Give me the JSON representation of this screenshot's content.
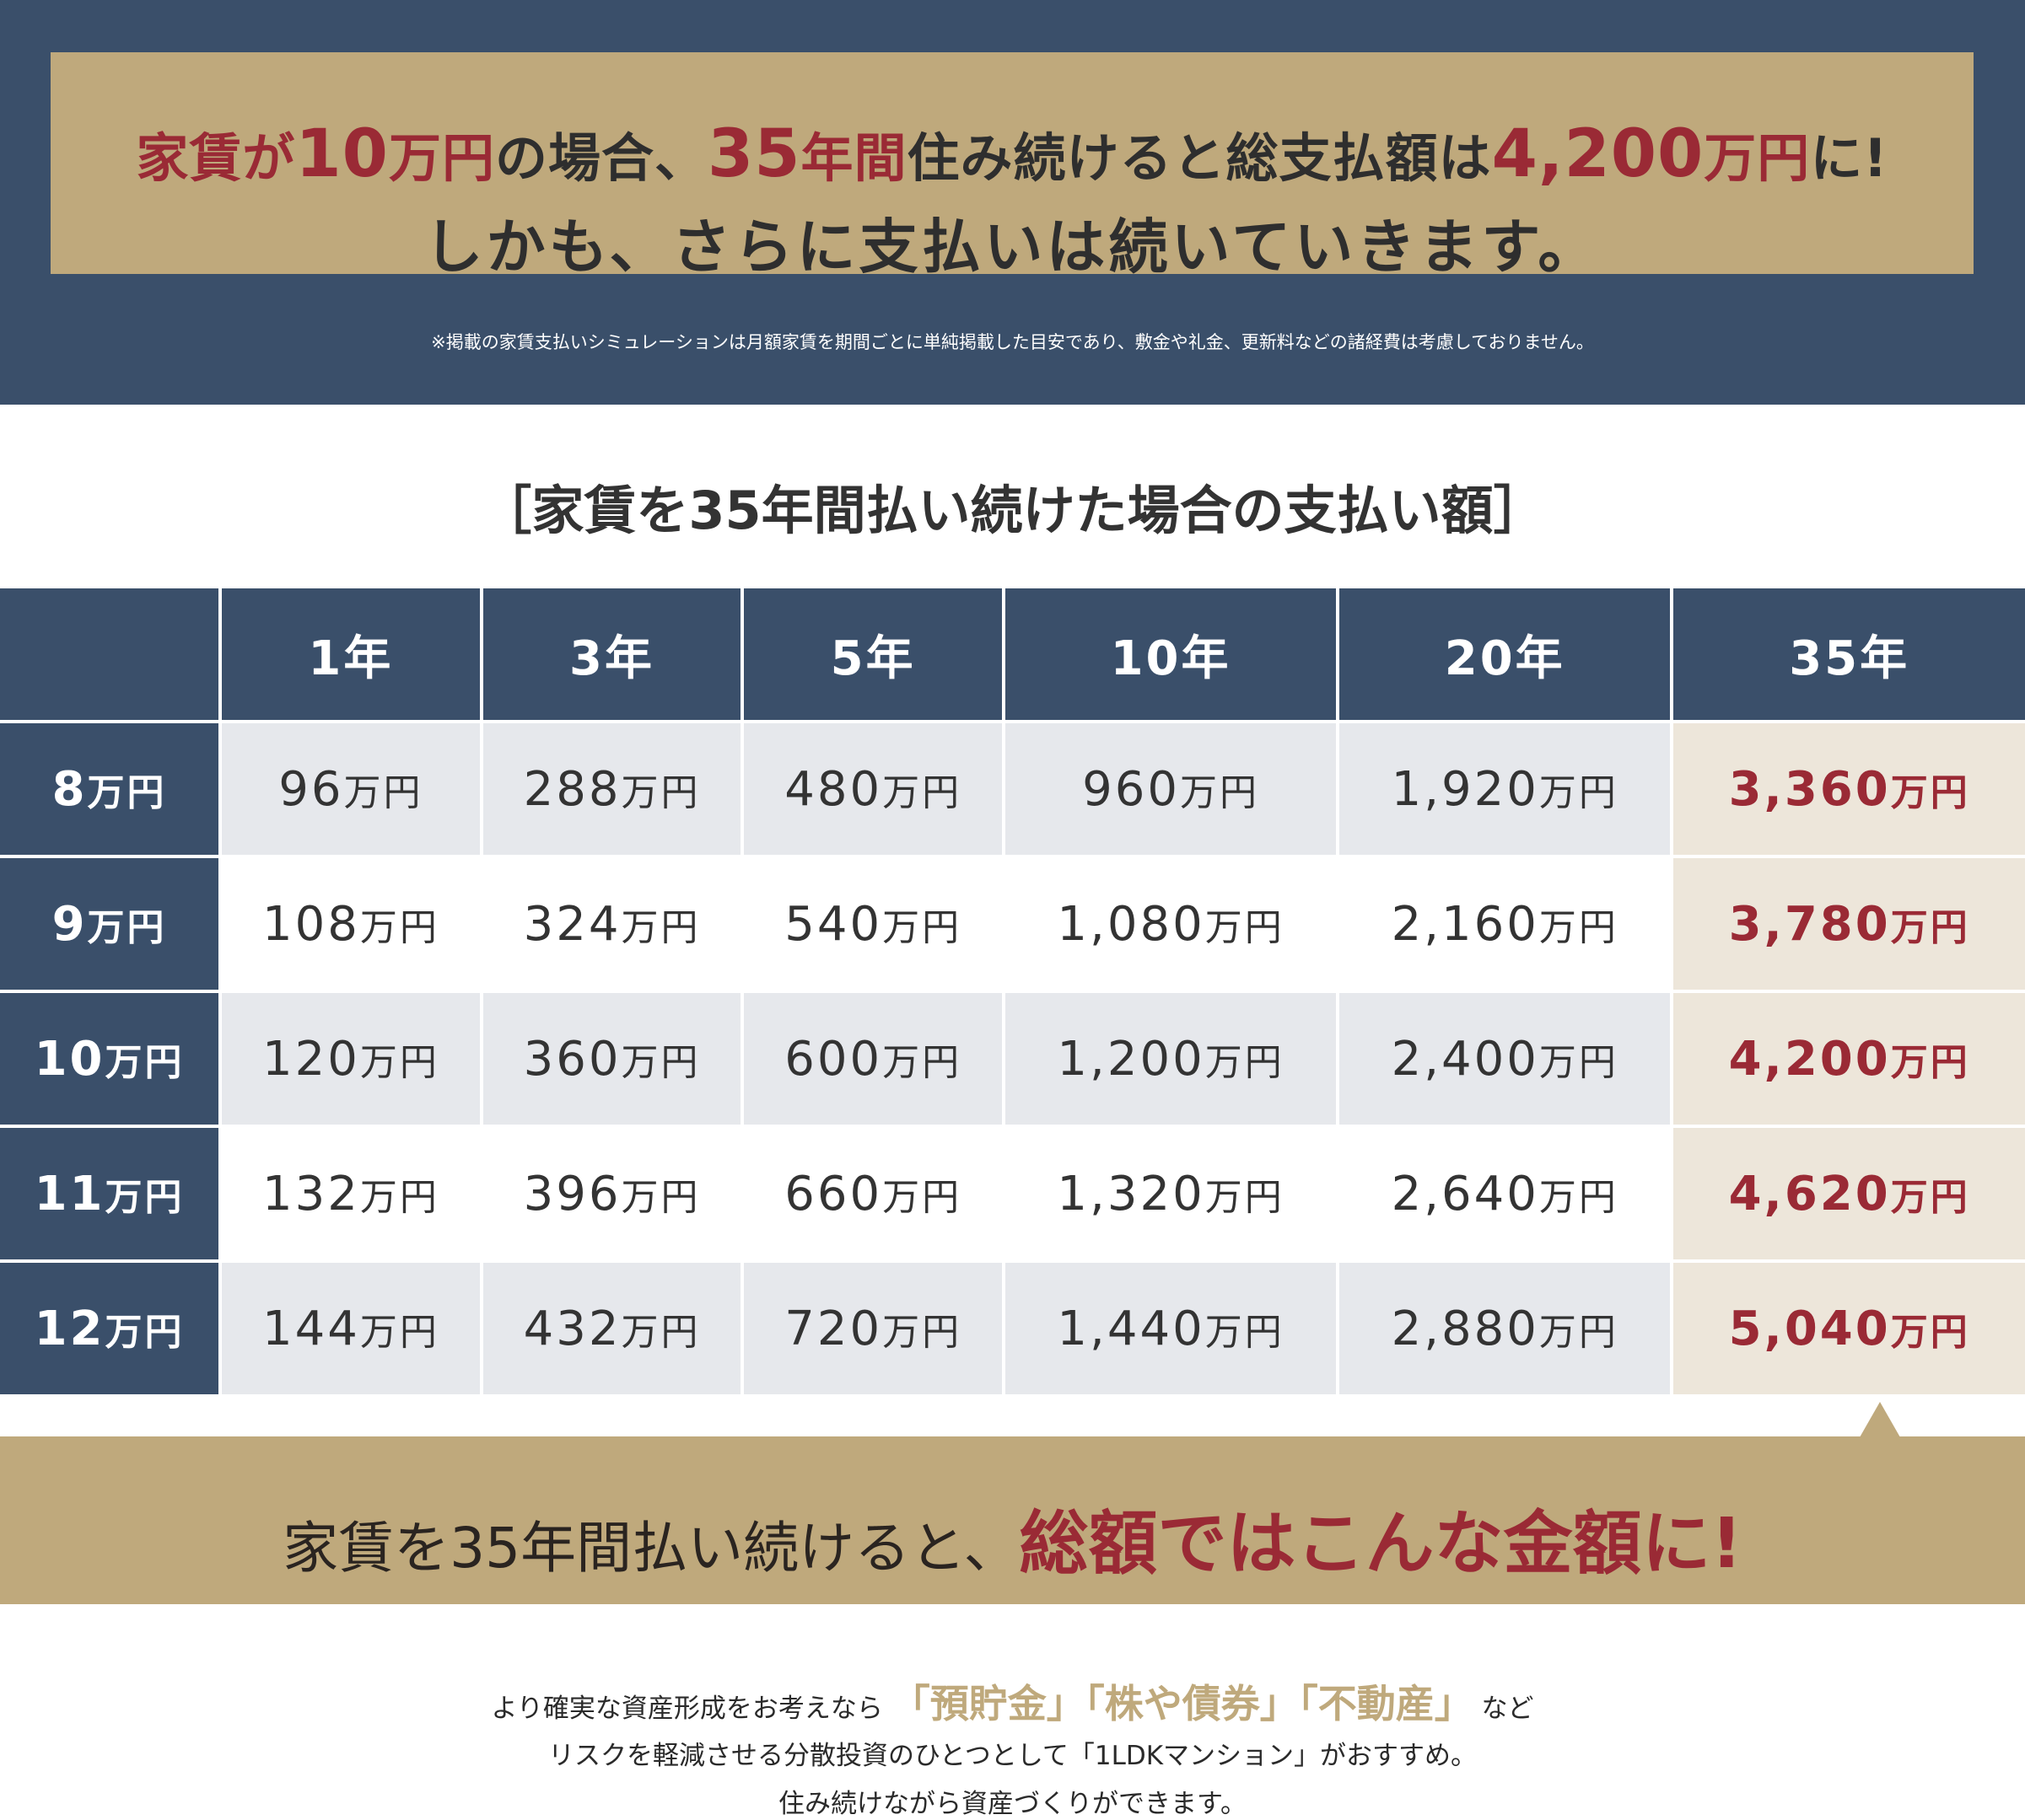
{
  "header": {
    "line1": [
      {
        "t": "家賃が",
        "c": "r"
      },
      {
        "t": "10",
        "c": "r big"
      },
      {
        "t": "万円",
        "c": "r"
      },
      {
        "t": "の場合、",
        "c": ""
      },
      {
        "t": "35",
        "c": "r big"
      },
      {
        "t": "年間",
        "c": "r"
      },
      {
        "t": "住み続けると総支払額は",
        "c": ""
      },
      {
        "t": "4,200",
        "c": "r big"
      },
      {
        "t": "万円",
        "c": "r"
      },
      {
        "t": "に!",
        "c": ""
      }
    ],
    "line2": "しかも、さらに支払いは続いていきます。",
    "note": "※掲載の家賃支払いシミュレーションは月額家賃を期間ごとに単純掲載した目安であり、敷金や礼金、更新料などの諸経費は考慮しておりません。"
  },
  "table_title": "［家賃を35年間払い続けた場合の支払い額］",
  "table": {
    "columns": [
      "",
      "1年",
      "3年",
      "5年",
      "10年",
      "20年",
      "35年"
    ],
    "unit": "万円",
    "rows": [
      {
        "rent": "8",
        "values": [
          "96",
          "288",
          "480",
          "960",
          "1,920",
          "3,360"
        ]
      },
      {
        "rent": "9",
        "values": [
          "108",
          "324",
          "540",
          "1,080",
          "2,160",
          "3,780"
        ]
      },
      {
        "rent": "10",
        "values": [
          "120",
          "360",
          "600",
          "1,200",
          "2,400",
          "4,200"
        ]
      },
      {
        "rent": "11",
        "values": [
          "132",
          "396",
          "660",
          "1,320",
          "2,640",
          "4,620"
        ]
      },
      {
        "rent": "12",
        "values": [
          "144",
          "432",
          "720",
          "1,440",
          "2,880",
          "5,040"
        ]
      }
    ]
  },
  "band": {
    "plain": "家賃を35年間払い続けると、",
    "emph": "総額ではこんな金額に!"
  },
  "bottom": {
    "line1_pre": "より確実な資産形成をお考えなら",
    "line1_hl": "「預貯金」「株や債券」「不動産」",
    "line1_post": "など",
    "line2": "リスクを軽減させる分散投資のひとつとして「1LDKマンション」がおすすめ。",
    "line3": "住み続けながら資産づくりができます。"
  },
  "colors": {
    "navy": "#3a4f6a",
    "gold": "#bfa97c",
    "red": "#9a2a35",
    "highlight_col": "#ede6da"
  }
}
